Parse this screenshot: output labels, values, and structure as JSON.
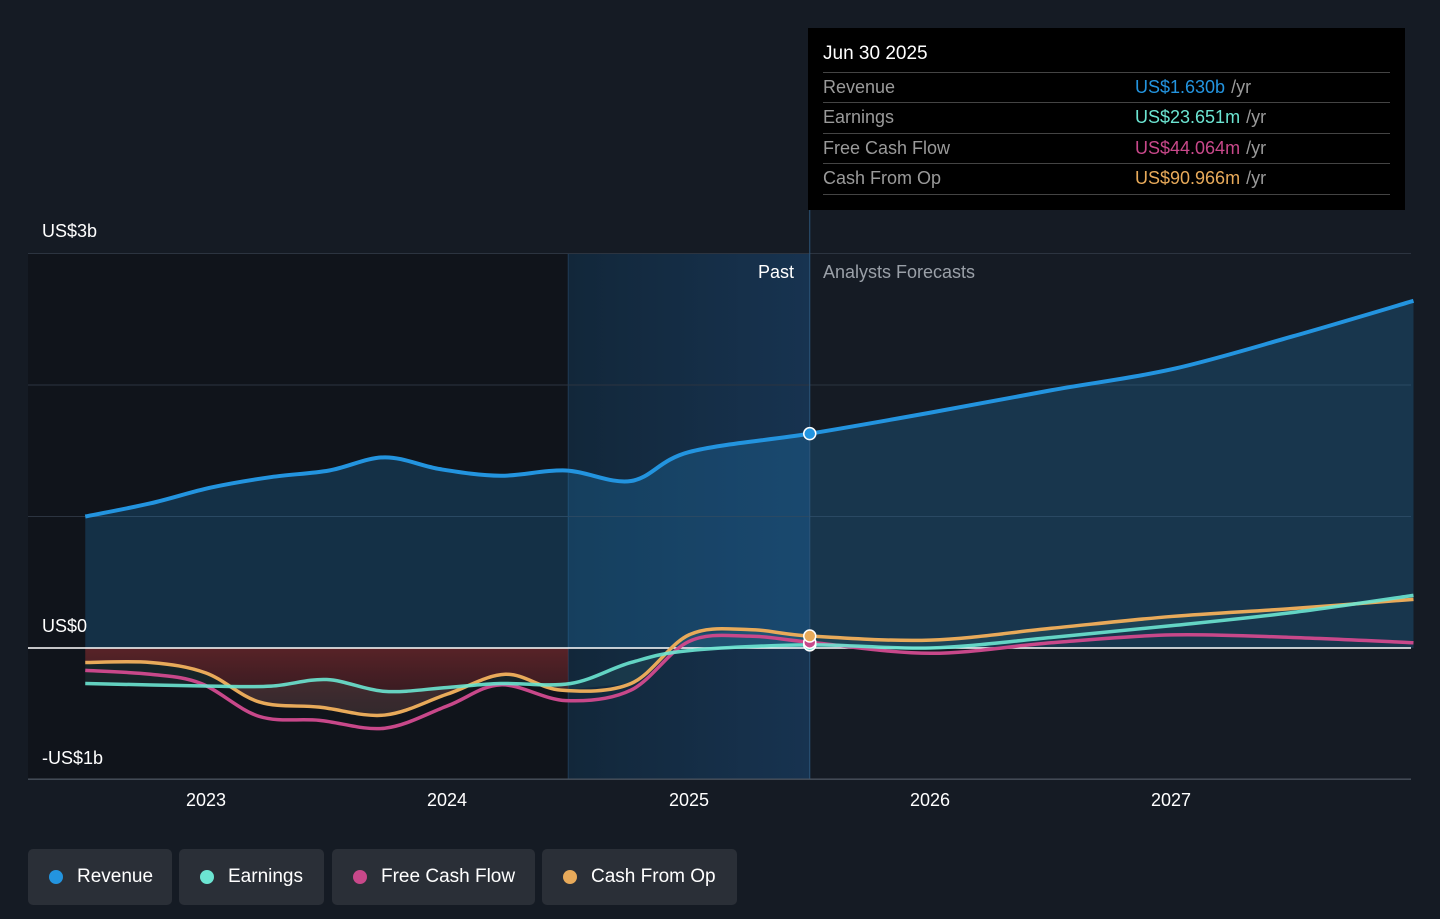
{
  "chart_data": {
    "type": "line",
    "y_ticks": [
      {
        "v": 3,
        "label": "US$3b"
      },
      {
        "v": 0,
        "label": "US$0"
      },
      {
        "v": -1,
        "label": "-US$1b"
      }
    ],
    "ylim": [
      -1,
      3
    ],
    "xlim": [
      2022.26,
      2028.0
    ],
    "x_ticks": [
      {
        "v": 2023,
        "label": "2023"
      },
      {
        "v": 2024,
        "label": "2024"
      },
      {
        "v": 2025,
        "label": "2025"
      },
      {
        "v": 2026,
        "label": "2026"
      },
      {
        "v": 2027,
        "label": "2027"
      }
    ],
    "past_label": "Past",
    "forecast_label": "Analysts Forecasts",
    "past_end": 2025.5,
    "highlight_start": 2024.5,
    "series": [
      {
        "name": "Revenue",
        "color": "#2394df",
        "x": [
          2022.5,
          2022.77,
          2023.02,
          2023.27,
          2023.51,
          2023.74,
          2023.97,
          2024.22,
          2024.49,
          2024.76,
          2025.0,
          2025.5,
          2026.0,
          2026.5,
          2027.0,
          2027.5,
          2028.0
        ],
        "values": [
          1.0,
          1.1,
          1.22,
          1.3,
          1.35,
          1.45,
          1.36,
          1.31,
          1.35,
          1.27,
          1.49,
          1.63,
          1.79,
          1.96,
          2.12,
          2.37,
          2.64
        ]
      },
      {
        "name": "Earnings",
        "color": "#6ce5d2",
        "x": [
          2022.5,
          2023.02,
          2023.27,
          2023.5,
          2023.74,
          2024.0,
          2024.22,
          2024.51,
          2024.76,
          2025.0,
          2025.5,
          2026.0,
          2026.5,
          2027.0,
          2027.5,
          2028.0
        ],
        "values": [
          -0.27,
          -0.29,
          -0.29,
          -0.24,
          -0.33,
          -0.3,
          -0.27,
          -0.27,
          -0.11,
          -0.02,
          0.024,
          0.0,
          0.08,
          0.17,
          0.27,
          0.4
        ]
      },
      {
        "name": "Free Cash Flow",
        "color": "#c8488a",
        "x": [
          2022.5,
          2022.77,
          2022.98,
          2023.22,
          2023.47,
          2023.74,
          2024.0,
          2024.22,
          2024.49,
          2024.76,
          2025.0,
          2025.25,
          2025.5,
          2026.0,
          2026.5,
          2027.0,
          2027.5,
          2028.0
        ],
        "values": [
          -0.17,
          -0.2,
          -0.27,
          -0.52,
          -0.55,
          -0.61,
          -0.44,
          -0.28,
          -0.4,
          -0.32,
          0.05,
          0.09,
          0.044,
          -0.04,
          0.04,
          0.1,
          0.08,
          0.04
        ]
      },
      {
        "name": "Cash From Op",
        "color": "#e8aa5a",
        "x": [
          2022.5,
          2022.77,
          2023.0,
          2023.22,
          2023.47,
          2023.74,
          2024.0,
          2024.24,
          2024.47,
          2024.76,
          2025.0,
          2025.25,
          2025.5,
          2026.0,
          2026.5,
          2027.0,
          2027.5,
          2028.0
        ],
        "values": [
          -0.11,
          -0.11,
          -0.19,
          -0.41,
          -0.45,
          -0.51,
          -0.35,
          -0.2,
          -0.32,
          -0.27,
          0.1,
          0.14,
          0.091,
          0.06,
          0.15,
          0.24,
          0.3,
          0.37
        ]
      }
    ]
  },
  "tooltip": {
    "date": "Jun 30 2025",
    "unit": "/yr",
    "rows": [
      {
        "label": "Revenue",
        "value": "US$1.630b",
        "color": "#2394df"
      },
      {
        "label": "Earnings",
        "value": "US$23.651m",
        "color": "#6ce5d2"
      },
      {
        "label": "Free Cash Flow",
        "value": "US$44.064m",
        "color": "#c8488a"
      },
      {
        "label": "Cash From Op",
        "value": "US$90.966m",
        "color": "#e8aa5a"
      }
    ]
  },
  "legend": [
    {
      "label": "Revenue",
      "color": "#2394df"
    },
    {
      "label": "Earnings",
      "color": "#6ce5d2"
    },
    {
      "label": "Free Cash Flow",
      "color": "#c8488a"
    },
    {
      "label": "Cash From Op",
      "color": "#e8aa5a"
    }
  ]
}
